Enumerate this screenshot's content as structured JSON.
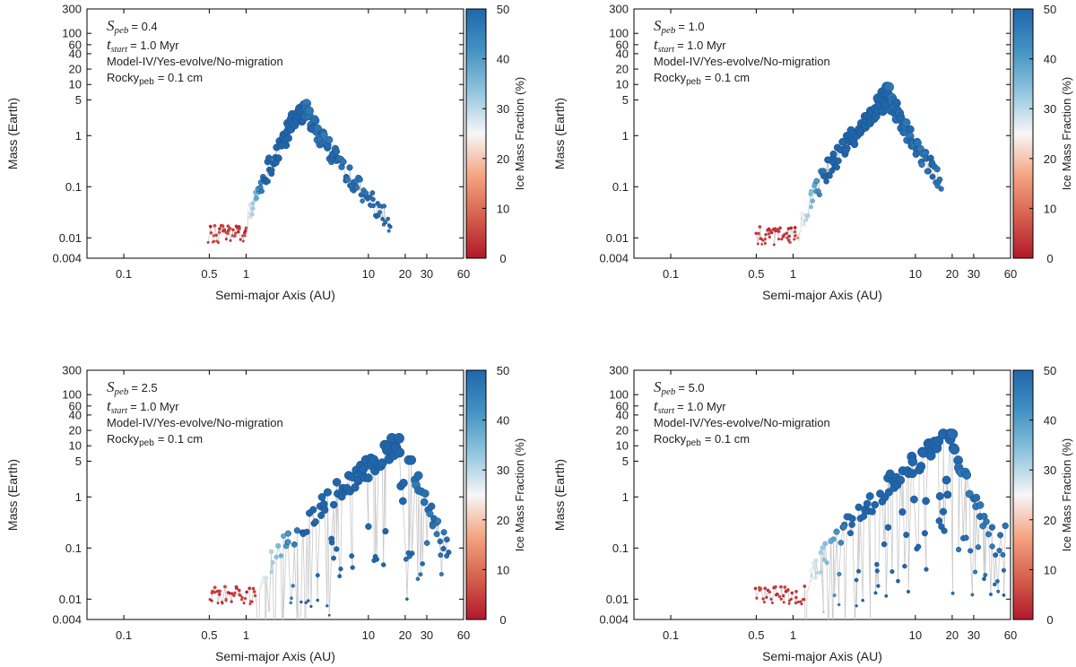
{
  "colorbar": {
    "label": "Ice Mass Fraction (%)",
    "ticks": [
      0,
      10,
      20,
      30,
      40,
      50
    ],
    "range": [
      0,
      50
    ],
    "colors": [
      "#b2182b",
      "#d6604d",
      "#f4a582",
      "#f7f7f7",
      "#92c5de",
      "#4393c3",
      "#2166ac"
    ]
  },
  "colors": {
    "link_line": "#c8c8c8",
    "frame": "#000000"
  },
  "chart_data": [
    {
      "type": "scatter",
      "xlabel": "Semi-major Axis (AU)",
      "ylabel": "Mass (Earth)",
      "xscale": "log",
      "yscale": "log",
      "xlim": [
        0.05,
        60
      ],
      "ylim": [
        0.004,
        300
      ],
      "xticks": [
        "0.1",
        "0.5",
        "1",
        "10",
        "20",
        "30",
        "60"
      ],
      "yticks": [
        "0.004",
        "0.01",
        "0.1",
        "1",
        "5",
        "10",
        "20",
        "40",
        "60",
        "100",
        "300"
      ],
      "annotation": {
        "speb_symbol": "S",
        "speb_sub": "peb",
        "speb_value": "= 0.4",
        "tstart_symbol": "t",
        "tstart_sub": "start",
        "tstart_value": "= 1.0 Myr",
        "model": "Model-IV/Yes-evolve/No-migration",
        "rocky_symbol": "Rocky",
        "rocky_sub": "peb",
        "rocky_value": "= 0.1 cm"
      },
      "series": [
        {
          "a_range": [
            0.5,
            15
          ],
          "peak_a": 3.0,
          "peak_mass": 3.8,
          "left_mass": 0.012,
          "right_mass": 0.02,
          "ramp_start": 1.0,
          "gas_giant_limit": null
        }
      ]
    },
    {
      "type": "scatter",
      "xlabel": "Semi-major Axis (AU)",
      "ylabel": "Mass (Earth)",
      "xscale": "log",
      "yscale": "log",
      "xlim": [
        0.05,
        60
      ],
      "ylim": [
        0.004,
        300
      ],
      "xticks": [
        "0.1",
        "0.5",
        "1",
        "10",
        "20",
        "30",
        "60"
      ],
      "yticks": [
        "0.004",
        "0.01",
        "0.1",
        "1",
        "5",
        "10",
        "20",
        "40",
        "60",
        "100",
        "300"
      ],
      "annotation": {
        "speb_symbol": "S",
        "speb_sub": "peb",
        "speb_value": "= 1.0",
        "tstart_symbol": "t",
        "tstart_sub": "start",
        "tstart_value": "= 1.0 Myr",
        "model": "Model-IV/Yes-evolve/No-migration",
        "rocky_symbol": "Rocky",
        "rocky_sub": "peb",
        "rocky_value": "= 0.1 cm"
      },
      "series": [
        {
          "a_range": [
            0.5,
            16
          ],
          "peak_a": 6.0,
          "peak_mass": 6.5,
          "left_mass": 0.011,
          "right_mass": 0.13,
          "ramp_start": 1.1,
          "gas_giant_limit": null
        }
      ]
    },
    {
      "type": "scatter",
      "xlabel": "Semi-major Axis (AU)",
      "ylabel": "Mass (Earth)",
      "xscale": "log",
      "yscale": "log",
      "xlim": [
        0.05,
        60
      ],
      "ylim": [
        0.004,
        300
      ],
      "xticks": [
        "0.1",
        "0.5",
        "1",
        "10",
        "20",
        "30",
        "60"
      ],
      "yticks": [
        "0.004",
        "0.01",
        "0.1",
        "1",
        "5",
        "10",
        "20",
        "40",
        "60",
        "100",
        "300"
      ],
      "annotation": {
        "speb_symbol": "S",
        "speb_sub": "peb",
        "speb_value": "= 2.5",
        "tstart_symbol": "t",
        "tstart_sub": "start",
        "tstart_value": "= 1.0 Myr",
        "model": "Model-IV/Yes-evolve/No-migration",
        "rocky_symbol": "Rocky",
        "rocky_sub": "peb",
        "rocky_value": "= 0.1 cm"
      },
      "series": [
        {
          "a_range": [
            0.5,
            45
          ],
          "peak_a": 20.0,
          "peak_mass": 14,
          "left_mass": 0.012,
          "right_mass": 0.09,
          "ramp_start": 1.2,
          "gas_giant_limit": 14
        }
      ]
    },
    {
      "type": "scatter",
      "xlabel": "Semi-major Axis (AU)",
      "ylabel": "Mass (Earth)",
      "xscale": "log",
      "yscale": "log",
      "xlim": [
        0.05,
        60
      ],
      "ylim": [
        0.004,
        300
      ],
      "xticks": [
        "0.1",
        "0.5",
        "1",
        "10",
        "20",
        "30",
        "60"
      ],
      "yticks": [
        "0.004",
        "0.01",
        "0.1",
        "1",
        "5",
        "10",
        "20",
        "40",
        "60",
        "100",
        "300"
      ],
      "annotation": {
        "speb_symbol": "S",
        "speb_sub": "peb",
        "speb_value": "= 5.0",
        "tstart_symbol": "t",
        "tstart_sub": "start",
        "tstart_value": "= 1.0 Myr",
        "model": "Model-IV/Yes-evolve/No-migration",
        "rocky_symbol": "Rocky",
        "rocky_sub": "peb",
        "rocky_value": "= 0.1 cm"
      },
      "series": [
        {
          "a_range": [
            0.5,
            55
          ],
          "peak_a": 20.0,
          "peak_mass": 17,
          "left_mass": 0.012,
          "right_mass": 0.05,
          "ramp_start": 1.25,
          "gas_giant_limit": 17
        }
      ]
    }
  ]
}
